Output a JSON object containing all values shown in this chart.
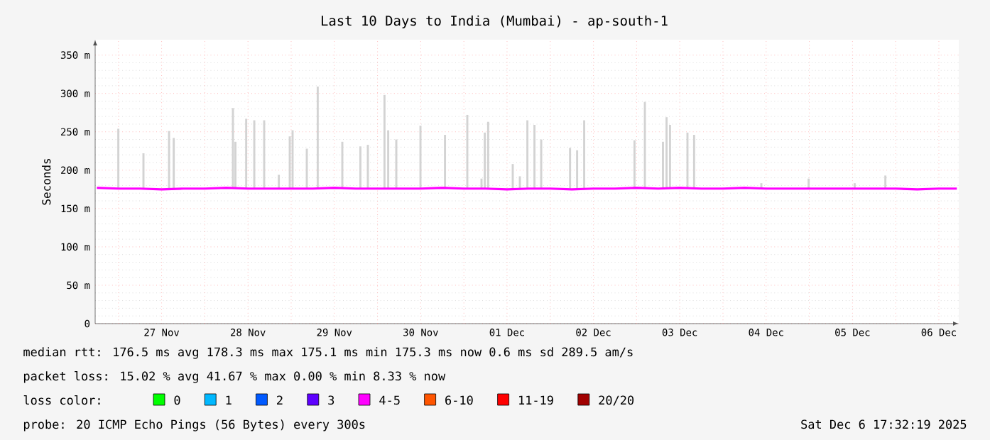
{
  "chart_data": {
    "type": "bar",
    "title": "Last 10 Days to India (Mumbai) - ap-south-1",
    "ylabel": "Seconds",
    "xlim": [
      "2025-11-26T17:32",
      "2025-12-06T17:32"
    ],
    "xticks": [
      {
        "value": "2025-11-27T00:00",
        "label": null
      },
      {
        "value": "2025-11-27T12:00",
        "label": "27 Nov"
      },
      {
        "value": "2025-11-28T00:00",
        "label": null
      },
      {
        "value": "2025-11-28T12:00",
        "label": "28 Nov"
      },
      {
        "value": "2025-11-29T00:00",
        "label": null
      },
      {
        "value": "2025-11-29T12:00",
        "label": "29 Nov"
      },
      {
        "value": "2025-11-30T00:00",
        "label": null
      },
      {
        "value": "2025-11-30T12:00",
        "label": "30 Nov"
      },
      {
        "value": "2025-12-01T00:00",
        "label": null
      },
      {
        "value": "2025-12-01T12:00",
        "label": "01 Dec"
      },
      {
        "value": "2025-12-02T00:00",
        "label": null
      },
      {
        "value": "2025-12-02T12:00",
        "label": "02 Dec"
      },
      {
        "value": "2025-12-03T00:00",
        "label": null
      },
      {
        "value": "2025-12-03T12:00",
        "label": "03 Dec"
      },
      {
        "value": "2025-12-04T00:00",
        "label": null
      },
      {
        "value": "2025-12-04T12:00",
        "label": "04 Dec"
      },
      {
        "value": "2025-12-05T00:00",
        "label": null
      },
      {
        "value": "2025-12-05T12:00",
        "label": "05 Dec"
      },
      {
        "value": "2025-12-06T00:00",
        "label": null
      },
      {
        "value": "2025-12-06T12:00",
        "label": "06 Dec"
      }
    ],
    "ylim": [
      0,
      370
    ],
    "yticks": [
      0,
      {
        "value": 50,
        "label": "50 m"
      },
      {
        "value": 100,
        "label": "100 m"
      },
      {
        "value": 150,
        "label": "150 m"
      },
      {
        "value": 200,
        "label": "200 m"
      },
      {
        "value": 250,
        "label": "250 m"
      },
      {
        "value": 300,
        "label": "300 m"
      },
      {
        "value": 350,
        "label": "350 m"
      }
    ],
    "grid": true,
    "legend": "bottom",
    "legend_title": "loss color:",
    "series": [
      {
        "color": "#d3d3d3",
        "x": [
          "2025-11-26T23:58",
          "2025-11-27T06:57",
          "2025-11-27T14:04",
          "2025-11-27T15:22",
          "2025-11-28T07:49",
          "2025-11-28T08:30",
          "2025-11-28T11:30",
          "2025-11-28T13:45",
          "2025-11-28T16:30",
          "2025-11-28T20:34",
          "2025-11-28T23:37",
          "2025-11-29T00:24",
          "2025-11-29T04:21",
          "2025-11-29T07:23",
          "2025-11-29T14:13",
          "2025-11-29T19:14",
          "2025-11-29T21:19",
          "2025-11-30T01:56",
          "2025-11-30T02:58",
          "2025-11-30T05:13",
          "2025-11-30T11:56",
          "2025-11-30T18:45",
          "2025-12-01T00:57",
          "2025-12-01T04:54",
          "2025-12-01T05:49",
          "2025-12-01T06:45",
          "2025-12-01T13:35",
          "2025-12-01T15:34",
          "2025-12-01T17:39",
          "2025-12-01T19:37",
          "2025-12-01T21:29",
          "2025-12-02T05:30",
          "2025-12-02T07:28",
          "2025-12-02T09:26",
          "2025-12-02T23:25",
          "2025-12-03T02:18",
          "2025-12-03T07:19",
          "2025-12-03T08:20",
          "2025-12-03T09:17",
          "2025-12-03T14:08",
          "2025-12-03T15:59",
          "2025-12-04T10:40",
          "2025-12-04T23:49",
          "2025-12-05T12:36",
          "2025-12-05T21:08"
        ],
        "base": [
          176,
          176,
          176,
          176,
          176,
          176,
          176,
          176,
          176,
          176,
          176,
          176,
          176,
          176,
          176,
          176,
          176,
          176,
          176,
          176,
          176,
          176,
          176,
          176,
          176,
          176,
          176,
          176,
          176,
          176,
          176,
          176,
          176,
          176,
          176,
          176,
          176,
          176,
          176,
          176,
          176,
          176,
          176,
          176,
          176
        ],
        "values": [
          78,
          46,
          75,
          66,
          105,
          61,
          91,
          89,
          89,
          18,
          68,
          76,
          52,
          133,
          61,
          55,
          57,
          122,
          76,
          64,
          82,
          70,
          96,
          13,
          73,
          87,
          32,
          16,
          89,
          83,
          64,
          53,
          50,
          89,
          63,
          113,
          61,
          93,
          83,
          73,
          70,
          7,
          13,
          7,
          17
        ]
      },
      {
        "type": "line",
        "color": "#ff00ff",
        "x": [
          "2025-11-26T18:00",
          "2025-11-27T00:00",
          "2025-11-27T06:00",
          "2025-11-27T12:00",
          "2025-11-27T18:00",
          "2025-11-28T00:00",
          "2025-11-28T06:00",
          "2025-11-28T12:00",
          "2025-11-28T18:00",
          "2025-11-29T00:00",
          "2025-11-29T06:00",
          "2025-11-29T12:00",
          "2025-11-29T18:00",
          "2025-11-30T00:00",
          "2025-11-30T06:00",
          "2025-11-30T12:00",
          "2025-11-30T18:00",
          "2025-12-01T00:00",
          "2025-12-01T06:00",
          "2025-12-01T12:00",
          "2025-12-01T18:00",
          "2025-12-02T00:00",
          "2025-12-02T06:00",
          "2025-12-02T12:00",
          "2025-12-02T18:00",
          "2025-12-03T00:00",
          "2025-12-03T06:00",
          "2025-12-03T12:00",
          "2025-12-03T18:00",
          "2025-12-04T00:00",
          "2025-12-04T06:00",
          "2025-12-04T12:00",
          "2025-12-04T18:00",
          "2025-12-05T00:00",
          "2025-12-05T06:00",
          "2025-12-05T12:00",
          "2025-12-05T18:00",
          "2025-12-06T00:00",
          "2025-12-06T06:00",
          "2025-12-06T12:00",
          "2025-12-06T17:00"
        ],
        "values": [
          177,
          176,
          176,
          175,
          176,
          176,
          177,
          176,
          176,
          176,
          176,
          177,
          176,
          176,
          176,
          176,
          177,
          176,
          176,
          175,
          176,
          176,
          175,
          176,
          176,
          177,
          176,
          177,
          176,
          176,
          177,
          176,
          176,
          176,
          176,
          176,
          176,
          176,
          175,
          176,
          176
        ]
      },
      {
        "type": "line",
        "name": "0",
        "color": "#00ff00"
      },
      {
        "type": "line",
        "name": "1",
        "color": "#00b8ff"
      },
      {
        "type": "line",
        "name": "2",
        "color": "#0059ff"
      },
      {
        "type": "line",
        "name": "3",
        "color": "#5e00ff"
      },
      {
        "type": "line",
        "name": "4-5",
        "color": "#ff00ff"
      },
      {
        "type": "line",
        "name": "6-10",
        "color": "#ff5500"
      },
      {
        "type": "line",
        "name": "11-19",
        "color": "#ff0000"
      },
      {
        "type": "line",
        "name": "20/20",
        "color": "#a10000"
      }
    ],
    "annotations": [
      "median rtt: 176.5 ms avg 178.3 ms max 175.1 ms min 175.3 ms now 0.6 ms sd 289.5 am/s",
      "packet loss: 15.02 % avg 41.67 % max 0.00 % min 8.33 % now",
      "probe: 20 ICMP Echo Pings (56 Bytes) every 300s",
      "Sat Dec 6 17:32:19 2025"
    ]
  }
}
